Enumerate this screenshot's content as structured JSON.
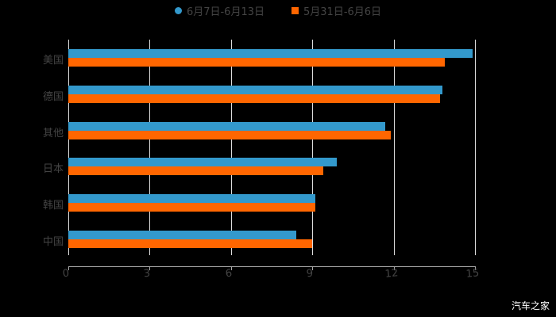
{
  "legend": {
    "series1": {
      "label": "6月7日-6月13日",
      "color": "#3399cc"
    },
    "series2": {
      "label": "5月31日-6月6日",
      "color": "#ff6600"
    }
  },
  "watermark": "汽车之家",
  "chart_data": {
    "type": "bar",
    "orientation": "horizontal",
    "title": "",
    "xlabel": "",
    "ylabel": "",
    "categories": [
      "美国",
      "德国",
      "其他",
      "日本",
      "韩国",
      "中国"
    ],
    "series": [
      {
        "name": "6月7日-6月13日",
        "color": "#3399cc",
        "values": [
          14.9,
          13.8,
          11.7,
          9.9,
          9.1,
          8.4
        ]
      },
      {
        "name": "5月31日-6月6日",
        "color": "#ff6600",
        "values": [
          13.9,
          13.7,
          11.9,
          9.4,
          9.1,
          9.0
        ]
      }
    ],
    "xlim": [
      0,
      15
    ],
    "x_ticks": [
      "0",
      "3",
      "6",
      "9",
      "12",
      "15"
    ],
    "grid": true,
    "legend_position": "top"
  }
}
